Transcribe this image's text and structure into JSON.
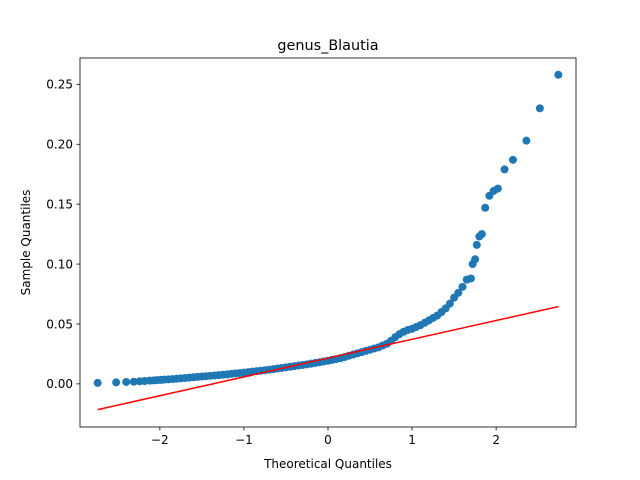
{
  "chart_data": {
    "type": "scatter",
    "title": "genus_Blautia",
    "xlabel": "Theoretical Quantiles",
    "ylabel": "Sample Quantiles",
    "xlim": [
      -2.95,
      2.95
    ],
    "ylim": [
      -0.036,
      0.272
    ],
    "xticks": [
      -2,
      -1,
      0,
      1,
      2
    ],
    "xtick_labels": [
      "−2",
      "−1",
      "0",
      "1",
      "2"
    ],
    "yticks": [
      0.0,
      0.05,
      0.1,
      0.15,
      0.2,
      0.25
    ],
    "ytick_labels": [
      "0.00",
      "0.05",
      "0.10",
      "0.15",
      "0.20",
      "0.25"
    ],
    "grid": false,
    "legend": "none",
    "series": [
      {
        "kind": "points",
        "color": "#1f77b4",
        "x": [
          -2.74,
          -2.52,
          -2.4,
          -2.31,
          -2.24,
          -2.18,
          -2.12,
          -2.07,
          -2.03,
          -1.99,
          -1.95,
          -1.9,
          -1.85,
          -1.8,
          -1.75,
          -1.7,
          -1.65,
          -1.6,
          -1.55,
          -1.5,
          -1.45,
          -1.4,
          -1.35,
          -1.3,
          -1.25,
          -1.2,
          -1.15,
          -1.1,
          -1.05,
          -1.0,
          -0.95,
          -0.9,
          -0.85,
          -0.8,
          -0.75,
          -0.7,
          -0.65,
          -0.6,
          -0.55,
          -0.5,
          -0.45,
          -0.4,
          -0.35,
          -0.3,
          -0.25,
          -0.2,
          -0.15,
          -0.1,
          -0.05,
          0.0,
          0.05,
          0.1,
          0.15,
          0.2,
          0.25,
          0.3,
          0.35,
          0.4,
          0.45,
          0.5,
          0.55,
          0.6,
          0.65,
          0.7,
          0.75,
          0.8,
          0.85,
          0.9,
          0.95,
          1.0,
          1.05,
          1.1,
          1.15,
          1.2,
          1.25,
          1.3,
          1.35,
          1.4,
          1.45,
          1.5,
          1.55,
          1.6,
          1.65,
          1.7,
          1.72,
          1.75,
          1.77,
          1.8,
          1.83,
          1.87,
          1.92,
          1.97,
          2.02,
          2.1,
          2.2,
          2.36,
          2.52,
          2.74
        ],
        "y": [
          0.0008,
          0.0012,
          0.0016,
          0.0018,
          0.0021,
          0.0024,
          0.0027,
          0.0029,
          0.0031,
          0.0033,
          0.0035,
          0.0038,
          0.004,
          0.0043,
          0.0046,
          0.0049,
          0.0052,
          0.0055,
          0.0058,
          0.0061,
          0.0064,
          0.0067,
          0.007,
          0.0073,
          0.0076,
          0.0079,
          0.0083,
          0.0087,
          0.009,
          0.0094,
          0.0098,
          0.0102,
          0.0106,
          0.011,
          0.0114,
          0.0118,
          0.0123,
          0.0128,
          0.0133,
          0.0138,
          0.0143,
          0.0148,
          0.0153,
          0.0158,
          0.0163,
          0.0169,
          0.0175,
          0.0181,
          0.0187,
          0.0193,
          0.02,
          0.0207,
          0.0215,
          0.0224,
          0.0235,
          0.0245,
          0.0255,
          0.0265,
          0.0275,
          0.0285,
          0.0295,
          0.0305,
          0.032,
          0.0335,
          0.036,
          0.039,
          0.0415,
          0.0435,
          0.045,
          0.046,
          0.0475,
          0.049,
          0.051,
          0.053,
          0.055,
          0.057,
          0.06,
          0.063,
          0.067,
          0.072,
          0.076,
          0.081,
          0.087,
          0.088,
          0.1,
          0.104,
          0.116,
          0.123,
          0.125,
          0.147,
          0.157,
          0.161,
          0.163,
          0.179,
          0.187,
          0.203,
          0.23,
          0.258
        ]
      },
      {
        "kind": "reference-line",
        "color": "#ff0000",
        "x": [
          -2.74,
          2.74
        ],
        "y": [
          -0.0215,
          0.0645
        ]
      }
    ]
  }
}
